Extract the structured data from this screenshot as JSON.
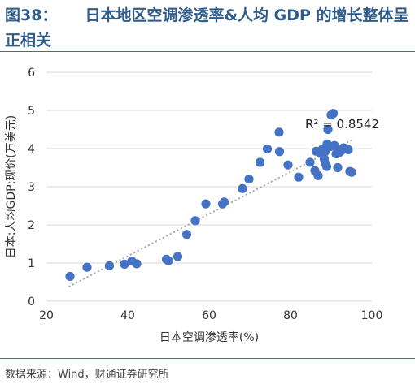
{
  "figure": {
    "number": "图38：",
    "title": "日本地区空调渗透率&人均 GDP 的增长整体呈正相关",
    "source": "数据来源：Wind，财通证券研究所"
  },
  "chart_data": {
    "type": "scatter",
    "xlabel": "日本空调渗透率(%)",
    "ylabel": "日本:人均GDP:现价(万美元)",
    "xlim": [
      20,
      100
    ],
    "ylim": [
      0,
      6
    ],
    "xticks": [
      20,
      40,
      60,
      80,
      100
    ],
    "yticks": [
      0,
      1,
      2,
      3,
      4,
      5,
      6
    ],
    "legend": "none",
    "grid": "horizontal",
    "marker_color": "#4472c4",
    "trendline": {
      "style": "dotted",
      "color": "#a6a6a6",
      "r2_label": "R² = 0.8542",
      "x_range": [
        25.5,
        95
      ],
      "y_range": [
        0.38,
        4.22
      ]
    },
    "points": [
      [
        25.8,
        0.65
      ],
      [
        30.0,
        0.89
      ],
      [
        35.5,
        0.93
      ],
      [
        39.2,
        0.97
      ],
      [
        41.0,
        1.05
      ],
      [
        42.2,
        0.98
      ],
      [
        49.5,
        1.1
      ],
      [
        50.0,
        1.06
      ],
      [
        52.3,
        1.17
      ],
      [
        54.5,
        1.75
      ],
      [
        56.6,
        2.11
      ],
      [
        59.2,
        2.55
      ],
      [
        63.3,
        2.55
      ],
      [
        63.7,
        2.6
      ],
      [
        68.2,
        2.95
      ],
      [
        69.8,
        3.2
      ],
      [
        72.5,
        3.64
      ],
      [
        74.3,
        3.99
      ],
      [
        77.3,
        3.92
      ],
      [
        77.2,
        4.43
      ],
      [
        79.4,
        3.57
      ],
      [
        82.0,
        3.25
      ],
      [
        84.8,
        3.64
      ],
      [
        86.0,
        3.42
      ],
      [
        86.3,
        3.93
      ],
      [
        86.8,
        3.29
      ],
      [
        87.4,
        3.88
      ],
      [
        87.9,
        3.99
      ],
      [
        88.3,
        3.73
      ],
      [
        88.5,
        3.92
      ],
      [
        88.6,
        3.6
      ],
      [
        88.9,
        3.53
      ],
      [
        89.0,
        4.12
      ],
      [
        89.2,
        4.5
      ],
      [
        89.7,
        4.05
      ],
      [
        90.0,
        4.88
      ],
      [
        90.5,
        4.92
      ],
      [
        90.8,
        4.08
      ],
      [
        91.2,
        3.86
      ],
      [
        91.6,
        3.5
      ],
      [
        92.0,
        3.9
      ],
      [
        92.6,
        3.95
      ],
      [
        93.0,
        4.02
      ],
      [
        93.6,
        4.0
      ],
      [
        94.2,
        3.97
      ],
      [
        94.6,
        3.4
      ],
      [
        95.0,
        3.38
      ]
    ]
  }
}
